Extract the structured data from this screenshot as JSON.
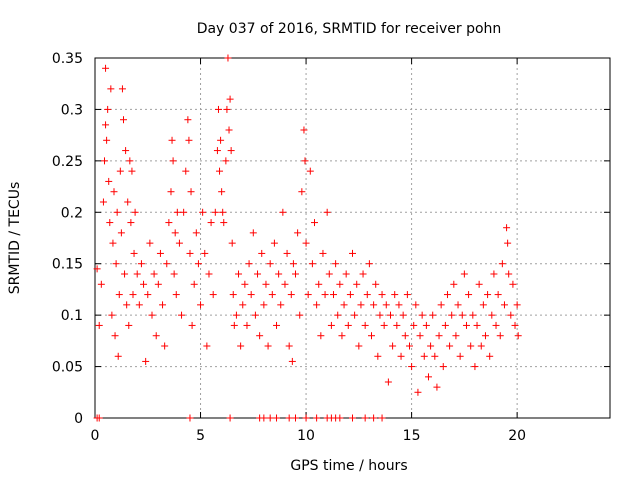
{
  "chart_data": {
    "type": "scatter",
    "title": "Day 037 of 2016, SRMTID for receiver pohn",
    "xlabel": "GPS time / hours",
    "ylabel": "SRMTID / TECUs",
    "xlim": [
      0,
      24.4
    ],
    "ylim": [
      0,
      0.35
    ],
    "x_ticks": [
      0,
      5,
      10,
      15,
      20
    ],
    "x_tick_labels": [
      "0",
      "5",
      "10",
      "15",
      "20"
    ],
    "y_ticks": [
      0,
      0.05,
      0.1,
      0.15,
      0.2,
      0.25,
      0.3,
      0.35
    ],
    "y_tick_labels": [
      "0",
      "0.05",
      "0.1",
      "0.15",
      "0.2",
      "0.25",
      "0.3",
      "0.35"
    ],
    "grid": true,
    "marker": "+",
    "series": [
      {
        "name": "SRMTID",
        "color": "#ff0000",
        "points": [
          [
            0.1,
            0.145
          ],
          [
            0.2,
            0.09
          ],
          [
            0.3,
            0.13
          ],
          [
            0.4,
            0.21
          ],
          [
            0.45,
            0.25
          ],
          [
            0.5,
            0.285
          ],
          [
            0.5,
            0.34
          ],
          [
            0.55,
            0.27
          ],
          [
            0.6,
            0.3
          ],
          [
            0.65,
            0.23
          ],
          [
            0.7,
            0.19
          ],
          [
            0.75,
            0.32
          ],
          [
            0.8,
            0.1
          ],
          [
            0.85,
            0.17
          ],
          [
            0.9,
            0.22
          ],
          [
            0.95,
            0.08
          ],
          [
            1.0,
            0.15
          ],
          [
            1.05,
            0.2
          ],
          [
            1.1,
            0.06
          ],
          [
            1.15,
            0.12
          ],
          [
            1.2,
            0.24
          ],
          [
            1.25,
            0.18
          ],
          [
            1.3,
            0.32
          ],
          [
            1.35,
            0.29
          ],
          [
            1.4,
            0.14
          ],
          [
            1.45,
            0.26
          ],
          [
            1.5,
            0.11
          ],
          [
            1.55,
            0.21
          ],
          [
            1.6,
            0.09
          ],
          [
            1.65,
            0.25
          ],
          [
            1.7,
            0.19
          ],
          [
            1.75,
            0.24
          ],
          [
            1.8,
            0.12
          ],
          [
            1.85,
            0.16
          ],
          [
            1.9,
            0.2
          ],
          [
            2.0,
            0.14
          ],
          [
            2.1,
            0.11
          ],
          [
            2.2,
            0.15
          ],
          [
            2.3,
            0.13
          ],
          [
            2.4,
            0.055
          ],
          [
            2.5,
            0.12
          ],
          [
            2.6,
            0.17
          ],
          [
            2.7,
            0.1
          ],
          [
            2.8,
            0.14
          ],
          [
            2.9,
            0.08
          ],
          [
            3.0,
            0.13
          ],
          [
            3.1,
            0.16
          ],
          [
            3.2,
            0.11
          ],
          [
            3.3,
            0.07
          ],
          [
            3.4,
            0.15
          ],
          [
            3.5,
            0.19
          ],
          [
            3.6,
            0.22
          ],
          [
            3.65,
            0.27
          ],
          [
            3.7,
            0.25
          ],
          [
            3.75,
            0.14
          ],
          [
            3.8,
            0.18
          ],
          [
            3.85,
            0.12
          ],
          [
            3.9,
            0.2
          ],
          [
            4.0,
            0.17
          ],
          [
            4.1,
            0.1
          ],
          [
            4.2,
            0.2
          ],
          [
            4.3,
            0.24
          ],
          [
            4.4,
            0.29
          ],
          [
            4.45,
            0.27
          ],
          [
            4.5,
            0.16
          ],
          [
            4.55,
            0.22
          ],
          [
            4.6,
            0.09
          ],
          [
            4.7,
            0.13
          ],
          [
            4.8,
            0.18
          ],
          [
            4.9,
            0.15
          ],
          [
            5.0,
            0.11
          ],
          [
            5.1,
            0.2
          ],
          [
            5.2,
            0.16
          ],
          [
            5.3,
            0.07
          ],
          [
            5.4,
            0.14
          ],
          [
            5.5,
            0.19
          ],
          [
            5.6,
            0.12
          ],
          [
            5.7,
            0.2
          ],
          [
            5.8,
            0.26
          ],
          [
            5.85,
            0.3
          ],
          [
            5.9,
            0.24
          ],
          [
            5.95,
            0.27
          ],
          [
            6.0,
            0.22
          ],
          [
            6.05,
            0.2
          ],
          [
            6.1,
            0.19
          ],
          [
            6.2,
            0.25
          ],
          [
            6.25,
            0.3
          ],
          [
            6.3,
            0.35
          ],
          [
            6.35,
            0.28
          ],
          [
            6.4,
            0.31
          ],
          [
            6.45,
            0.26
          ],
          [
            6.5,
            0.17
          ],
          [
            6.55,
            0.12
          ],
          [
            6.6,
            0.09
          ],
          [
            6.7,
            0.1
          ],
          [
            6.8,
            0.14
          ],
          [
            6.9,
            0.07
          ],
          [
            7.0,
            0.11
          ],
          [
            7.1,
            0.13
          ],
          [
            7.2,
            0.09
          ],
          [
            7.3,
            0.15
          ],
          [
            7.4,
            0.12
          ],
          [
            7.5,
            0.18
          ],
          [
            7.6,
            0.1
          ],
          [
            7.7,
            0.14
          ],
          [
            7.8,
            0.08
          ],
          [
            7.9,
            0.16
          ],
          [
            8.0,
            0.11
          ],
          [
            8.1,
            0.13
          ],
          [
            8.2,
            0.07
          ],
          [
            8.3,
            0.15
          ],
          [
            8.4,
            0.12
          ],
          [
            8.5,
            0.17
          ],
          [
            8.6,
            0.09
          ],
          [
            8.7,
            0.14
          ],
          [
            8.8,
            0.11
          ],
          [
            8.9,
            0.2
          ],
          [
            9.0,
            0.13
          ],
          [
            9.1,
            0.16
          ],
          [
            9.2,
            0.07
          ],
          [
            9.3,
            0.12
          ],
          [
            9.35,
            0.055
          ],
          [
            9.4,
            0.15
          ],
          [
            9.5,
            0.14
          ],
          [
            9.6,
            0.18
          ],
          [
            9.7,
            0.1
          ],
          [
            9.8,
            0.22
          ],
          [
            9.9,
            0.28
          ],
          [
            9.95,
            0.25
          ],
          [
            10.0,
            0.17
          ],
          [
            10.1,
            0.12
          ],
          [
            10.2,
            0.24
          ],
          [
            10.3,
            0.15
          ],
          [
            10.4,
            0.19
          ],
          [
            10.5,
            0.11
          ],
          [
            10.6,
            0.13
          ],
          [
            10.7,
            0.08
          ],
          [
            10.8,
            0.16
          ],
          [
            10.9,
            0.12
          ],
          [
            11.0,
            0.2
          ],
          [
            11.1,
            0.14
          ],
          [
            11.2,
            0.09
          ],
          [
            11.3,
            0.12
          ],
          [
            11.4,
            0.15
          ],
          [
            11.5,
            0.1
          ],
          [
            11.6,
            0.13
          ],
          [
            11.7,
            0.08
          ],
          [
            11.8,
            0.11
          ],
          [
            11.9,
            0.14
          ],
          [
            12.0,
            0.09
          ],
          [
            12.1,
            0.12
          ],
          [
            12.2,
            0.16
          ],
          [
            12.3,
            0.1
          ],
          [
            12.4,
            0.13
          ],
          [
            12.5,
            0.07
          ],
          [
            12.6,
            0.11
          ],
          [
            12.7,
            0.14
          ],
          [
            12.8,
            0.09
          ],
          [
            12.9,
            0.12
          ],
          [
            13.0,
            0.15
          ],
          [
            13.1,
            0.08
          ],
          [
            13.2,
            0.11
          ],
          [
            13.3,
            0.13
          ],
          [
            13.4,
            0.06
          ],
          [
            13.5,
            0.1
          ],
          [
            13.6,
            0.12
          ],
          [
            13.7,
            0.09
          ],
          [
            13.8,
            0.11
          ],
          [
            13.9,
            0.035
          ],
          [
            14.0,
            0.1
          ],
          [
            14.1,
            0.07
          ],
          [
            14.2,
            0.12
          ],
          [
            14.3,
            0.09
          ],
          [
            14.4,
            0.11
          ],
          [
            14.5,
            0.06
          ],
          [
            14.6,
            0.1
          ],
          [
            14.7,
            0.08
          ],
          [
            14.8,
            0.12
          ],
          [
            14.9,
            0.07
          ],
          [
            15.0,
            0.05
          ],
          [
            15.1,
            0.09
          ],
          [
            15.2,
            0.11
          ],
          [
            15.3,
            0.025
          ],
          [
            15.4,
            0.08
          ],
          [
            15.5,
            0.1
          ],
          [
            15.6,
            0.06
          ],
          [
            15.7,
            0.09
          ],
          [
            15.8,
            0.04
          ],
          [
            15.9,
            0.07
          ],
          [
            16.0,
            0.1
          ],
          [
            16.1,
            0.06
          ],
          [
            16.2,
            0.03
          ],
          [
            16.3,
            0.08
          ],
          [
            16.4,
            0.11
          ],
          [
            16.5,
            0.05
          ],
          [
            16.6,
            0.09
          ],
          [
            16.7,
            0.12
          ],
          [
            16.8,
            0.07
          ],
          [
            16.9,
            0.1
          ],
          [
            17.0,
            0.13
          ],
          [
            17.1,
            0.08
          ],
          [
            17.2,
            0.11
          ],
          [
            17.3,
            0.06
          ],
          [
            17.4,
            0.1
          ],
          [
            17.5,
            0.14
          ],
          [
            17.6,
            0.09
          ],
          [
            17.7,
            0.12
          ],
          [
            17.8,
            0.07
          ],
          [
            17.9,
            0.1
          ],
          [
            18.0,
            0.05
          ],
          [
            18.1,
            0.09
          ],
          [
            18.2,
            0.13
          ],
          [
            18.3,
            0.07
          ],
          [
            18.4,
            0.11
          ],
          [
            18.5,
            0.08
          ],
          [
            18.6,
            0.12
          ],
          [
            18.7,
            0.06
          ],
          [
            18.8,
            0.1
          ],
          [
            18.9,
            0.14
          ],
          [
            19.0,
            0.09
          ],
          [
            19.1,
            0.12
          ],
          [
            19.2,
            0.08
          ],
          [
            19.3,
            0.15
          ],
          [
            19.4,
            0.11
          ],
          [
            19.5,
            0.185
          ],
          [
            19.55,
            0.17
          ],
          [
            19.6,
            0.14
          ],
          [
            19.7,
            0.1
          ],
          [
            19.8,
            0.13
          ],
          [
            19.9,
            0.09
          ],
          [
            20.0,
            0.11
          ],
          [
            20.05,
            0.08
          ],
          [
            0.1,
            0.0
          ],
          [
            0.2,
            0.0
          ],
          [
            4.5,
            0.0
          ],
          [
            6.4,
            0.0
          ],
          [
            7.8,
            0.0
          ],
          [
            8.0,
            0.0
          ],
          [
            8.3,
            0.0
          ],
          [
            8.6,
            0.0
          ],
          [
            9.2,
            0.0
          ],
          [
            9.5,
            0.0
          ],
          [
            10.0,
            0.0
          ],
          [
            10.5,
            0.0
          ],
          [
            11.0,
            0.0
          ],
          [
            11.2,
            0.0
          ],
          [
            11.4,
            0.0
          ],
          [
            11.6,
            0.0
          ],
          [
            12.2,
            0.0
          ],
          [
            12.8,
            0.0
          ],
          [
            13.2,
            0.0
          ],
          [
            13.6,
            0.0
          ]
        ]
      }
    ]
  }
}
